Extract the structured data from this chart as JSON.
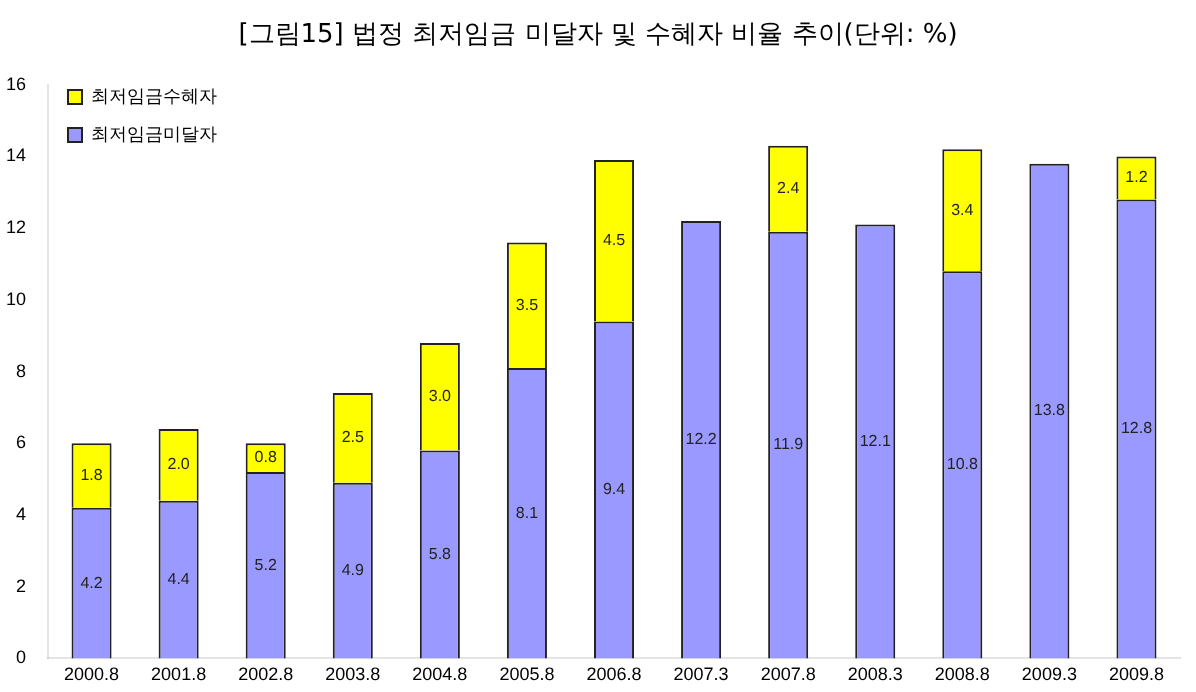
{
  "chart_data": {
    "type": "bar",
    "title": "[그림15] 법정 최저임금 미달자 및 수혜자 비율 추이(단위: %)",
    "categories": [
      "2000.8",
      "2001.8",
      "2002.8",
      "2003.8",
      "2004.8",
      "2005.8",
      "2006.8",
      "2007.3",
      "2007.8",
      "2008.3",
      "2008.8",
      "2009.3",
      "2009.8"
    ],
    "series": [
      {
        "name": "최저임금미달자",
        "color": "#9999ff",
        "values": [
          4.2,
          4.4,
          5.2,
          4.9,
          5.8,
          8.1,
          9.4,
          12.2,
          11.9,
          12.1,
          10.8,
          13.8,
          12.8
        ],
        "value_labels": [
          "4.2",
          "4.4",
          "5.2",
          "4.9",
          "5.8",
          "8.1",
          "9.4",
          "12.2",
          "11.9",
          "12.1",
          "10.8",
          "13.8",
          "12.8"
        ]
      },
      {
        "name": "최저임금수혜자",
        "color": "#ffff00",
        "values": [
          1.8,
          2.0,
          0.8,
          2.5,
          3.0,
          3.5,
          4.5,
          null,
          2.4,
          null,
          3.4,
          null,
          1.2
        ],
        "value_labels": [
          "1.8",
          "2.0",
          "0.8",
          "2.5",
          "3.0",
          "3.5",
          "4.5",
          null,
          "2.4",
          null,
          "3.4",
          null,
          "1.2"
        ]
      }
    ],
    "stacked": true,
    "ylim": [
      0,
      16
    ],
    "yticks": [
      0,
      2,
      4,
      6,
      8,
      10,
      12,
      14,
      16
    ],
    "grid": false,
    "legend": "top left"
  }
}
